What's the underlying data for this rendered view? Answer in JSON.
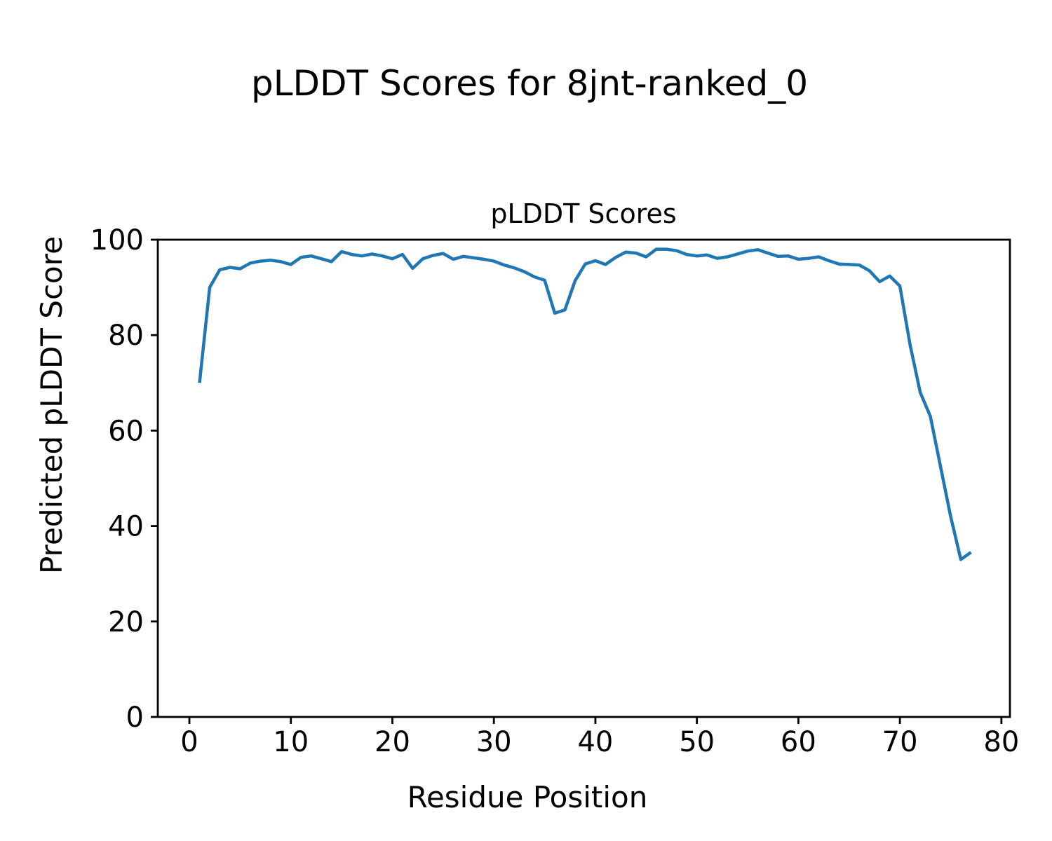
{
  "suptitle": "pLDDT Scores for 8jnt-ranked_0",
  "chart_data": {
    "type": "line",
    "title": "pLDDT Scores",
    "xlabel": "Residue Position",
    "ylabel": "Predicted pLDDT Score",
    "line_color": "#1f77b4",
    "grid": false,
    "legend": null,
    "xlim": [
      -3.11,
      80.84
    ],
    "ylim": [
      0,
      100
    ],
    "xticks": [
      0,
      10,
      20,
      30,
      40,
      50,
      60,
      70,
      80
    ],
    "yticks": [
      0,
      20,
      40,
      60,
      80,
      100
    ],
    "x": [
      1,
      2,
      3,
      4,
      5,
      6,
      7,
      8,
      9,
      10,
      11,
      12,
      13,
      14,
      15,
      16,
      17,
      18,
      19,
      20,
      21,
      22,
      23,
      24,
      25,
      26,
      27,
      28,
      29,
      30,
      31,
      32,
      33,
      34,
      35,
      36,
      37,
      38,
      39,
      40,
      41,
      42,
      43,
      44,
      45,
      46,
      47,
      48,
      49,
      50,
      51,
      52,
      53,
      54,
      55,
      56,
      57,
      58,
      59,
      60,
      61,
      62,
      63,
      64,
      65,
      66,
      67,
      68,
      69,
      70,
      71,
      72,
      73,
      74,
      75,
      76,
      77
    ],
    "y": [
      70.0,
      90.0,
      93.7,
      94.2,
      93.9,
      95.1,
      95.5,
      95.7,
      95.4,
      94.8,
      96.3,
      96.6,
      96.0,
      95.4,
      97.5,
      96.9,
      96.6,
      97.0,
      96.6,
      96.0,
      96.9,
      94.0,
      96.0,
      96.7,
      97.1,
      95.9,
      96.5,
      96.2,
      95.9,
      95.5,
      94.7,
      94.1,
      93.3,
      92.2,
      91.5,
      84.6,
      85.3,
      91.4,
      94.9,
      95.6,
      94.8,
      96.3,
      97.4,
      97.2,
      96.4,
      98.0,
      98.0,
      97.7,
      96.9,
      96.6,
      96.8,
      96.1,
      96.4,
      97.0,
      97.6,
      97.9,
      97.2,
      96.5,
      96.6,
      95.9,
      96.1,
      96.4,
      95.6,
      94.9,
      94.8,
      94.7,
      93.5,
      91.2,
      92.4,
      90.3,
      78.0,
      68.0,
      63.0,
      52.5,
      42.0,
      33.0,
      34.5
    ]
  }
}
